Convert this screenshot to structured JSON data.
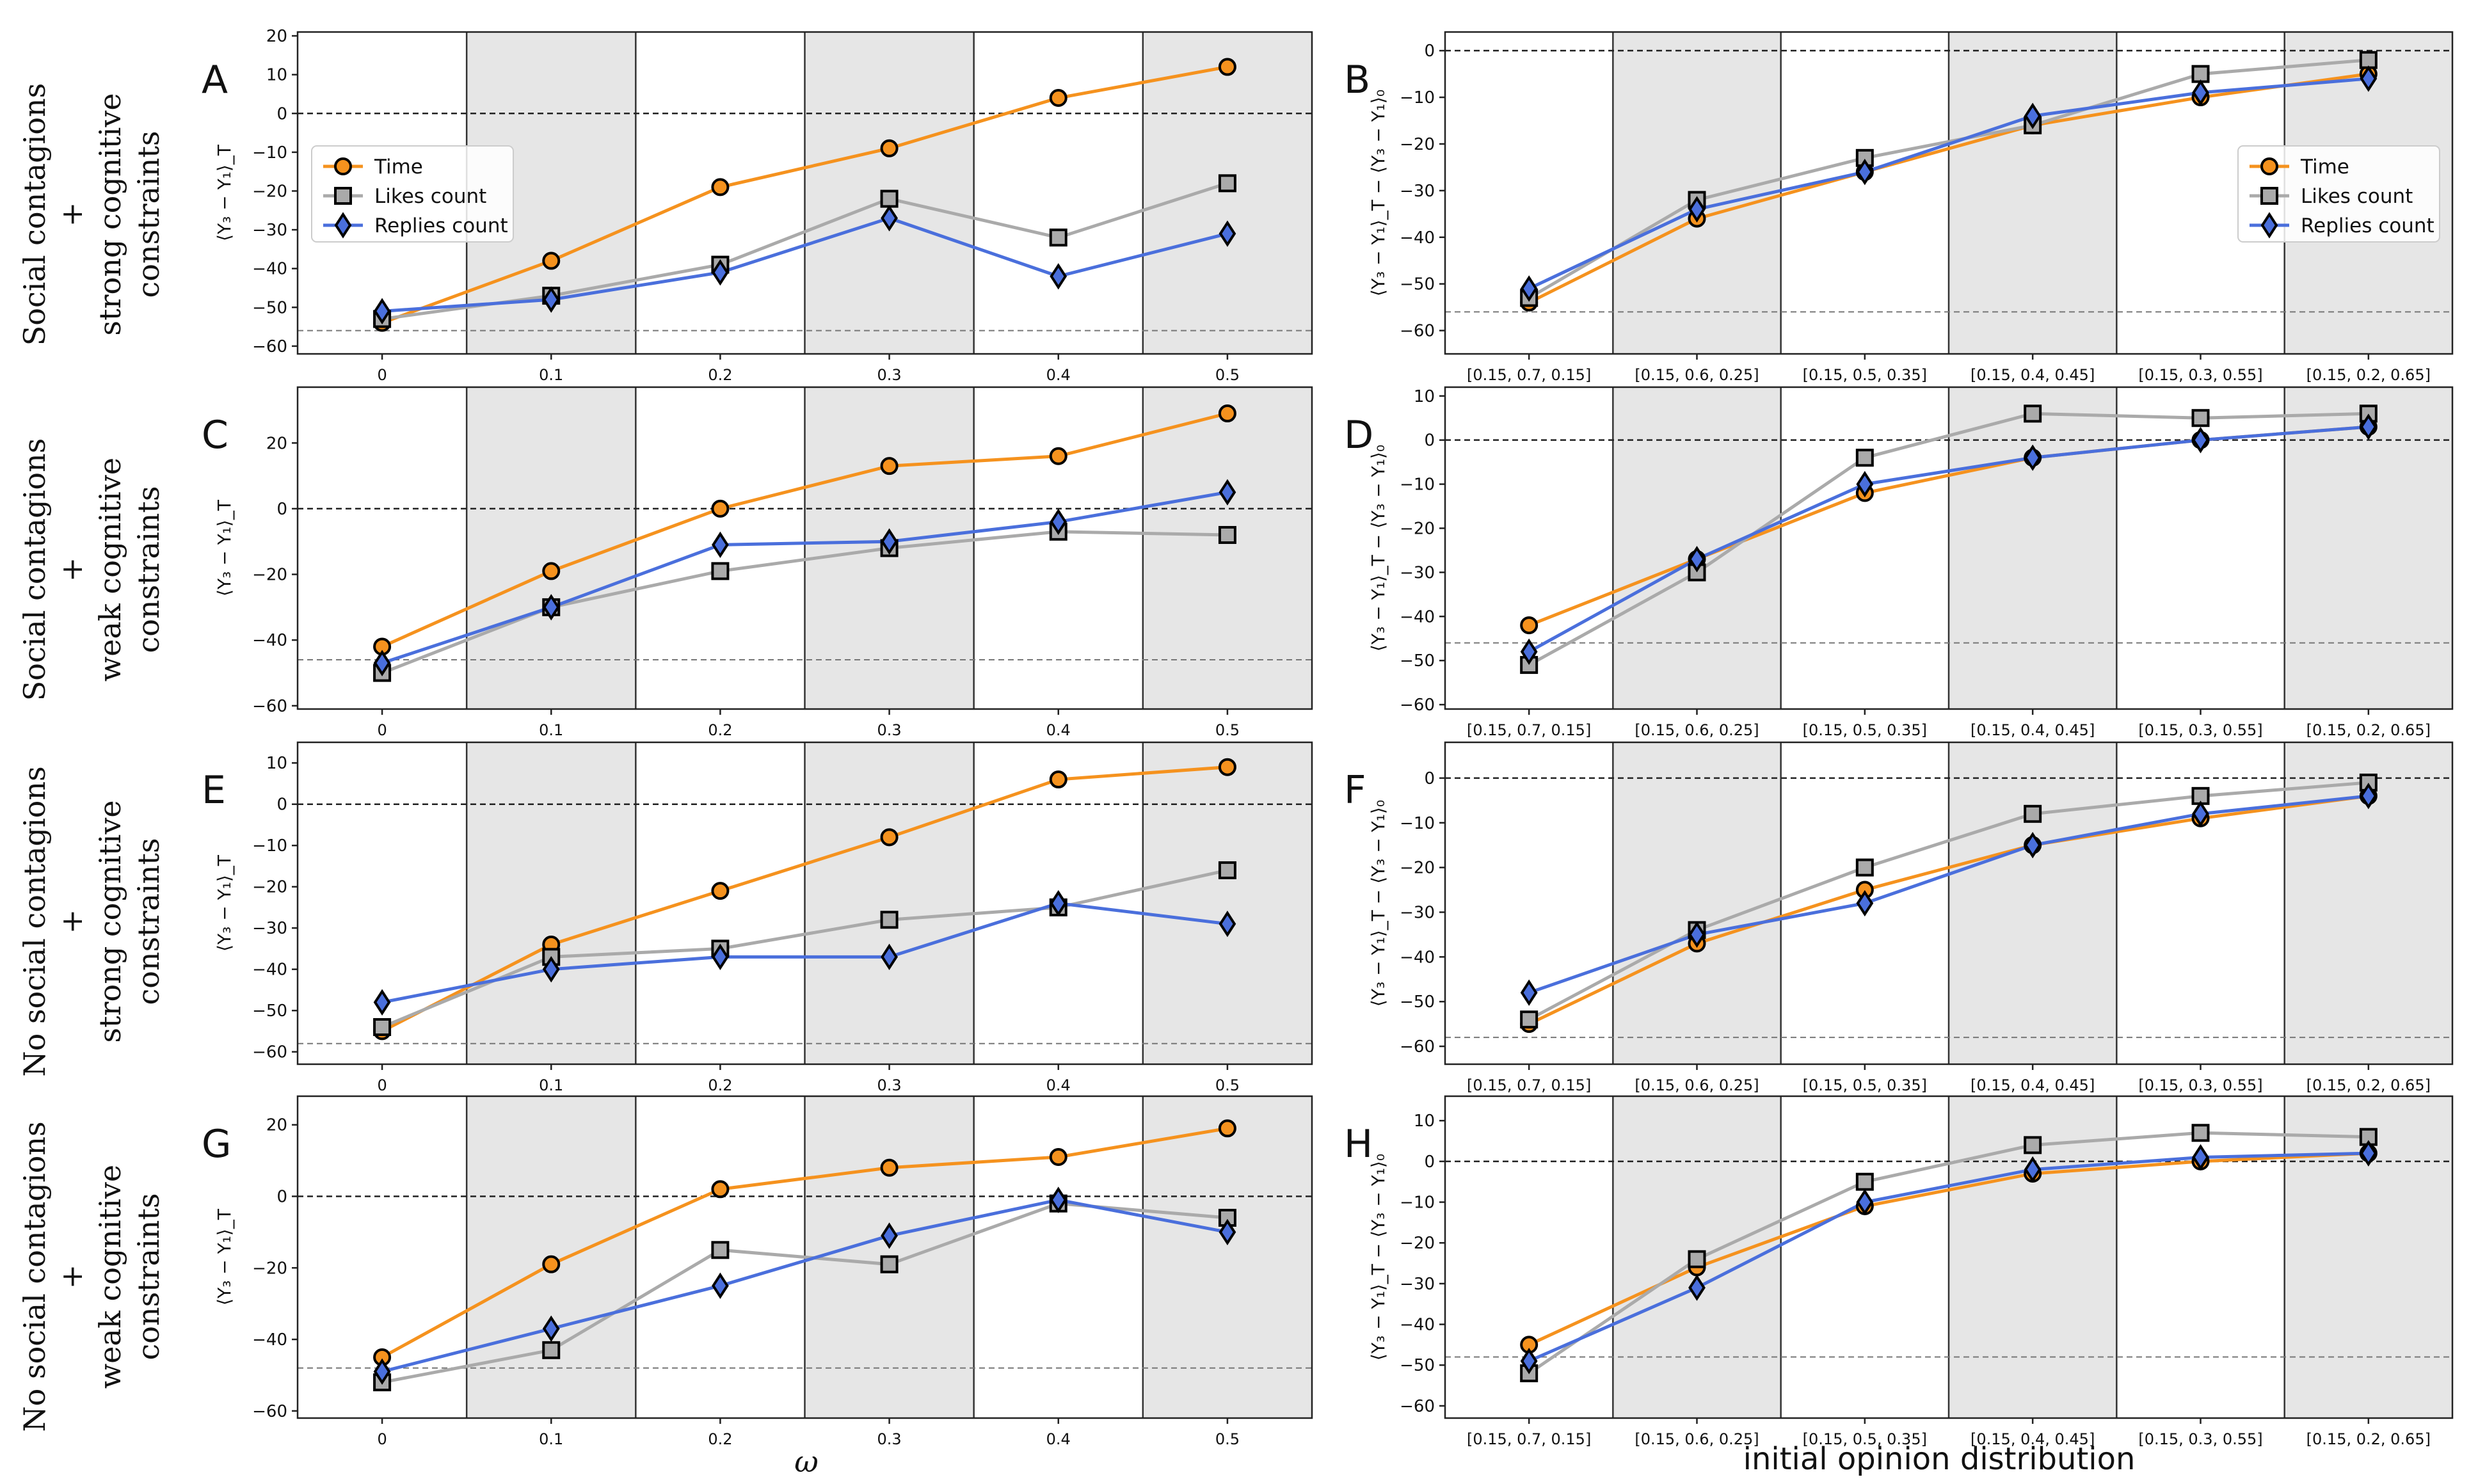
{
  "figure": {
    "row_labels": [
      {
        "line1": "Social contagions",
        "plus": "+",
        "line2": "strong cognitive",
        "line3": "constraints"
      },
      {
        "line1": "Social contagions",
        "plus": "+",
        "line2": "weak cognitive",
        "line3": "constraints"
      },
      {
        "line1": "No social contagions",
        "plus": "+",
        "line2": "strong cognitive",
        "line3": "constraints"
      },
      {
        "line1": "No social contagions",
        "plus": "+",
        "line2": "weak cognitive",
        "line3": "constraints"
      }
    ],
    "xlabel_left": "ω",
    "xlabel_right": "initial opinion distribution",
    "ylabel_left": "⟨Y₃ − Y₁⟩_T",
    "ylabel_right": "⟨Y₃ − Y₁⟩_T − ⟨Y₃ − Y₁⟩₀",
    "legend": [
      {
        "name": "Time",
        "color": "#f5921e",
        "marker": "circle"
      },
      {
        "name": "Likes count",
        "color": "#aaaaaa",
        "marker": "square"
      },
      {
        "name": "Replies count",
        "color": "#4a6fdc",
        "marker": "diamond"
      }
    ]
  },
  "chart_data": [
    {
      "panel": "A",
      "type": "line",
      "categories": [
        "0",
        "0.1",
        "0.2",
        "0.3",
        "0.4",
        "0.5"
      ],
      "ylim": [
        -62,
        21
      ],
      "yticks": [
        20,
        10,
        0,
        -10,
        -20,
        -30,
        -40,
        -50,
        -60
      ],
      "baseline": -56,
      "legend": true,
      "series": [
        {
          "name": "Time",
          "values": [
            -54,
            -38,
            -19,
            -9,
            4,
            12
          ]
        },
        {
          "name": "Likes count",
          "values": [
            -53,
            -47,
            -39,
            -22,
            -32,
            -18
          ]
        },
        {
          "name": "Replies count",
          "values": [
            -51,
            -48,
            -41,
            -27,
            -42,
            -31
          ]
        }
      ]
    },
    {
      "panel": "B",
      "type": "line",
      "categories": [
        "[0.15, 0.7, 0.15]",
        "[0.15, 0.6, 0.25]",
        "[0.15, 0.5, 0.35]",
        "[0.15, 0.4, 0.45]",
        "[0.15, 0.3, 0.55]",
        "[0.15, 0.2, 0.65]"
      ],
      "ylim": [
        -65,
        4
      ],
      "yticks": [
        0,
        -10,
        -20,
        -30,
        -40,
        -50,
        -60
      ],
      "baseline": -56,
      "legend": true,
      "series": [
        {
          "name": "Time",
          "values": [
            -54,
            -36,
            -26,
            -16,
            -10,
            -5
          ]
        },
        {
          "name": "Likes count",
          "values": [
            -53,
            -32,
            -23,
            -16,
            -5,
            -2
          ]
        },
        {
          "name": "Replies count",
          "values": [
            -51,
            -34,
            -26,
            -14,
            -9,
            -6
          ]
        }
      ]
    },
    {
      "panel": "C",
      "type": "line",
      "categories": [
        "0",
        "0.1",
        "0.2",
        "0.3",
        "0.4",
        "0.5"
      ],
      "ylim": [
        -61,
        37
      ],
      "yticks": [
        20,
        0,
        -20,
        -40,
        -60
      ],
      "baseline": -46,
      "legend": false,
      "series": [
        {
          "name": "Time",
          "values": [
            -42,
            -19,
            0,
            13,
            16,
            29
          ]
        },
        {
          "name": "Likes count",
          "values": [
            -50,
            -30,
            -19,
            -12,
            -7,
            -8
          ]
        },
        {
          "name": "Replies count",
          "values": [
            -47,
            -30,
            -11,
            -10,
            -4,
            5
          ]
        }
      ]
    },
    {
      "panel": "D",
      "type": "line",
      "categories": [
        "[0.15, 0.7, 0.15]",
        "[0.15, 0.6, 0.25]",
        "[0.15, 0.5, 0.35]",
        "[0.15, 0.4, 0.45]",
        "[0.15, 0.3, 0.55]",
        "[0.15, 0.2, 0.65]"
      ],
      "ylim": [
        -61,
        12
      ],
      "yticks": [
        10,
        0,
        -10,
        -20,
        -30,
        -40,
        -50,
        -60
      ],
      "baseline": -46,
      "legend": false,
      "series": [
        {
          "name": "Time",
          "values": [
            -42,
            -27,
            -12,
            -4,
            0,
            3
          ]
        },
        {
          "name": "Likes count",
          "values": [
            -51,
            -30,
            -4,
            6,
            5,
            6
          ]
        },
        {
          "name": "Replies count",
          "values": [
            -48,
            -27,
            -10,
            -4,
            0,
            3
          ]
        }
      ]
    },
    {
      "panel": "E",
      "type": "line",
      "categories": [
        "0",
        "0.1",
        "0.2",
        "0.3",
        "0.4",
        "0.5"
      ],
      "ylim": [
        -63,
        15
      ],
      "yticks": [
        10,
        0,
        -10,
        -20,
        -30,
        -40,
        -50,
        -60
      ],
      "baseline": -58,
      "legend": false,
      "series": [
        {
          "name": "Time",
          "values": [
            -55,
            -34,
            -21,
            -8,
            6,
            9
          ]
        },
        {
          "name": "Likes count",
          "values": [
            -54,
            -37,
            -35,
            -28,
            -25,
            -16
          ]
        },
        {
          "name": "Replies count",
          "values": [
            -48,
            -40,
            -37,
            -37,
            -24,
            -29
          ]
        }
      ]
    },
    {
      "panel": "F",
      "type": "line",
      "categories": [
        "[0.15, 0.7, 0.15]",
        "[0.15, 0.6, 0.25]",
        "[0.15, 0.5, 0.35]",
        "[0.15, 0.4, 0.45]",
        "[0.15, 0.3, 0.55]",
        "[0.15, 0.2, 0.65]"
      ],
      "ylim": [
        -64,
        8
      ],
      "yticks": [
        0,
        -10,
        -20,
        -30,
        -40,
        -50,
        -60
      ],
      "baseline": -58,
      "legend": false,
      "series": [
        {
          "name": "Time",
          "values": [
            -55,
            -37,
            -25,
            -15,
            -9,
            -4
          ]
        },
        {
          "name": "Likes count",
          "values": [
            -54,
            -34,
            -20,
            -8,
            -4,
            -1
          ]
        },
        {
          "name": "Replies count",
          "values": [
            -48,
            -35,
            -28,
            -15,
            -8,
            -4
          ]
        }
      ]
    },
    {
      "panel": "G",
      "type": "line",
      "categories": [
        "0",
        "0.1",
        "0.2",
        "0.3",
        "0.4",
        "0.5"
      ],
      "ylim": [
        -62,
        28
      ],
      "yticks": [
        20,
        0,
        -20,
        -40,
        -60
      ],
      "baseline": -48,
      "legend": false,
      "series": [
        {
          "name": "Time",
          "values": [
            -45,
            -19,
            2,
            8,
            11,
            19
          ]
        },
        {
          "name": "Likes count",
          "values": [
            -52,
            -43,
            -15,
            -19,
            -2,
            -6
          ]
        },
        {
          "name": "Replies count",
          "values": [
            -49,
            -37,
            -25,
            -11,
            -1,
            -10
          ]
        }
      ]
    },
    {
      "panel": "H",
      "type": "line",
      "categories": [
        "[0.15, 0.7, 0.15]",
        "[0.15, 0.6, 0.25]",
        "[0.15, 0.5, 0.35]",
        "[0.15, 0.4, 0.45]",
        "[0.15, 0.3, 0.55]",
        "[0.15, 0.2, 0.65]"
      ],
      "ylim": [
        -63,
        16
      ],
      "yticks": [
        10,
        0,
        -10,
        -20,
        -30,
        -40,
        -50,
        -60
      ],
      "baseline": -48,
      "legend": false,
      "series": [
        {
          "name": "Time",
          "values": [
            -45,
            -26,
            -11,
            -3,
            0,
            2
          ]
        },
        {
          "name": "Likes count",
          "values": [
            -52,
            -24,
            -5,
            4,
            7,
            6
          ]
        },
        {
          "name": "Replies count",
          "values": [
            -49,
            -31,
            -10,
            -2,
            1,
            2
          ]
        }
      ]
    }
  ]
}
